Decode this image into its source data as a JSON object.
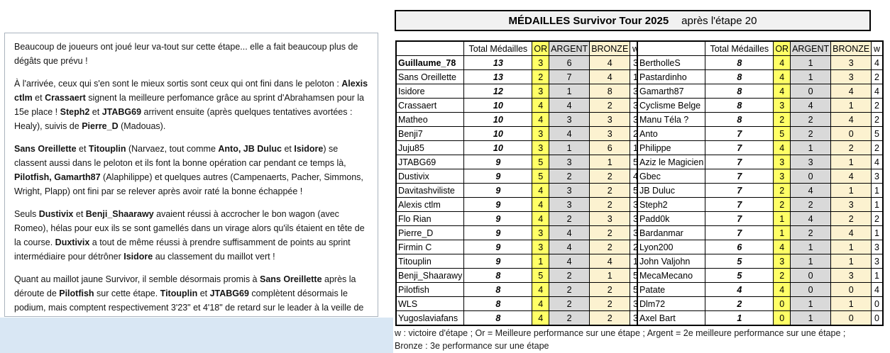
{
  "colors": {
    "or": "#ffff66",
    "argent": "#d9d9d9",
    "bronze": "#fcf2d0",
    "title_bg": "#f1f1f1",
    "blue_strip": "#d9e7f4"
  },
  "title": {
    "main": "MÉDAILLES Survivor Tour 2025",
    "suffix": "après l'étape 20"
  },
  "narrative": {
    "paragraphs": [
      [
        {
          "b": false,
          "t": "Beaucoup de joueurs ont joué leur va-tout sur cette étape... elle a fait beaucoup plus de dégâts que prévu !"
        }
      ],
      [
        {
          "b": false,
          "t": "À l'arrivée, ceux qui s'en sont le mieux sortis sont ceux qui ont fini dans le peloton : "
        },
        {
          "b": true,
          "t": "Alexis ctlm"
        },
        {
          "b": false,
          "t": " et "
        },
        {
          "b": true,
          "t": "Crassaert"
        },
        {
          "b": false,
          "t": " signent la meilleure perfomance grâce au sprint d'Abrahamsen pour la 15e place ! "
        },
        {
          "b": true,
          "t": "Steph2"
        },
        {
          "b": false,
          "t": " et "
        },
        {
          "b": true,
          "t": "JTABG69"
        },
        {
          "b": false,
          "t": " arrivent ensuite (après quelques tentatives avortées : Healy), suivis de "
        },
        {
          "b": true,
          "t": "Pierre_D"
        },
        {
          "b": false,
          "t": " (Madouas)."
        }
      ],
      [
        {
          "b": true,
          "t": "Sans Oreillette"
        },
        {
          "b": false,
          "t": " et "
        },
        {
          "b": true,
          "t": "Titouplin"
        },
        {
          "b": false,
          "t": " (Narvaez, tout comme "
        },
        {
          "b": true,
          "t": "Anto, JB Duluc"
        },
        {
          "b": false,
          "t": " et "
        },
        {
          "b": true,
          "t": "Isidore"
        },
        {
          "b": false,
          "t": ") se classent aussi dans le peloton et ils font la bonne opération car pendant ce temps là, "
        },
        {
          "b": true,
          "t": "Pilotfish, Gamarth87"
        },
        {
          "b": false,
          "t": " (Alaphilippe) et quelques autres (Campenaerts, Pacher, Simmons, Wright, Plapp) ont fini par se relever après avoir raté la bonne échappée !"
        }
      ],
      [
        {
          "b": false,
          "t": "Seuls "
        },
        {
          "b": true,
          "t": "Dustivix"
        },
        {
          "b": false,
          "t": " et "
        },
        {
          "b": true,
          "t": "Benji_Shaarawy"
        },
        {
          "b": false,
          "t": " avaient réussi à accrocher le bon wagon (avec Romeo), hélas pour eux ils se sont gamellés dans un virage alors qu'ils étaient en tête de la course. "
        },
        {
          "b": true,
          "t": "Duxtivix"
        },
        {
          "b": false,
          "t": " a tout de même réussi à prendre suffisamment de points au sprint intermédiaire pour détrôner "
        },
        {
          "b": true,
          "t": "Isidore"
        },
        {
          "b": false,
          "t": " au classement du maillot vert !"
        }
      ],
      [
        {
          "b": false,
          "t": "Quant au maillot jaune Survivor, il semble désormais promis à "
        },
        {
          "b": true,
          "t": "Sans Oreillette"
        },
        {
          "b": false,
          "t": " après la déroute de "
        },
        {
          "b": true,
          "t": "Pilotfish"
        },
        {
          "b": false,
          "t": " sur cette étape. "
        },
        {
          "b": true,
          "t": "Titouplin"
        },
        {
          "b": false,
          "t": " et "
        },
        {
          "b": true,
          "t": "JTABG69"
        },
        {
          "b": false,
          "t": " complètent désormais le podium, mais comptent respectivement 3'23\" et 4'18\" de retard sur le leader à la veille de l'arrivée."
        }
      ]
    ]
  },
  "tables": {
    "headers": {
      "name": "",
      "total": "Total Médailles",
      "or": "OR",
      "argent": "ARGENT",
      "bronze": "BRONZE",
      "w": "w"
    },
    "left": {
      "rows": [
        {
          "name": "Guillaume_78",
          "bold": true,
          "total": 13,
          "or": 3,
          "argent": 6,
          "bronze": 4,
          "w": 3
        },
        {
          "name": "Sans Oreillette",
          "total": 13,
          "or": 2,
          "argent": 7,
          "bronze": 4,
          "w": 1
        },
        {
          "name": "Isidore",
          "total": 12,
          "or": 3,
          "argent": 1,
          "bronze": 8,
          "w": 3
        },
        {
          "name": "Crassaert",
          "total": 10,
          "or": 4,
          "argent": 4,
          "bronze": 2,
          "w": 3
        },
        {
          "name": "Matheo",
          "total": 10,
          "or": 4,
          "argent": 3,
          "bronze": 3,
          "w": 3
        },
        {
          "name": "Benji7",
          "total": 10,
          "or": 3,
          "argent": 4,
          "bronze": 3,
          "w": 2
        },
        {
          "name": "Juju85",
          "total": 10,
          "or": 3,
          "argent": 1,
          "bronze": 6,
          "w": 1
        },
        {
          "name": "JTABG69",
          "total": 9,
          "or": 5,
          "argent": 3,
          "bronze": 1,
          "w": 5
        },
        {
          "name": "Dustivix",
          "total": 9,
          "or": 5,
          "argent": 2,
          "bronze": 2,
          "w": 4
        },
        {
          "name": "Davitashviliste",
          "total": 9,
          "or": 4,
          "argent": 3,
          "bronze": 2,
          "w": 5
        },
        {
          "name": "Alexis ctlm",
          "total": 9,
          "or": 4,
          "argent": 3,
          "bronze": 2,
          "w": 3
        },
        {
          "name": "Flo Rian",
          "total": 9,
          "or": 4,
          "argent": 2,
          "bronze": 3,
          "w": 3
        },
        {
          "name": "Pierre_D",
          "total": 9,
          "or": 3,
          "argent": 4,
          "bronze": 2,
          "w": 3
        },
        {
          "name": "Firmin C",
          "total": 9,
          "or": 3,
          "argent": 4,
          "bronze": 2,
          "w": 2
        },
        {
          "name": "Titouplin",
          "total": 9,
          "or": 1,
          "argent": 4,
          "bronze": 4,
          "w": 1
        },
        {
          "name": "Benji_Shaarawy",
          "total": 8,
          "or": 5,
          "argent": 2,
          "bronze": 1,
          "w": 5
        },
        {
          "name": "Pilotfish",
          "total": 8,
          "or": 4,
          "argent": 2,
          "bronze": 2,
          "w": 5
        },
        {
          "name": "WLS",
          "total": 8,
          "or": 4,
          "argent": 2,
          "bronze": 2,
          "w": 3
        },
        {
          "name": "Yugoslaviafans",
          "total": 8,
          "or": 4,
          "argent": 2,
          "bronze": 2,
          "w": 3
        }
      ]
    },
    "right": {
      "rows": [
        {
          "name": "BertholleS",
          "total": 8,
          "or": 4,
          "argent": 1,
          "bronze": 3,
          "w": 4
        },
        {
          "name": "Pastardinho",
          "total": 8,
          "or": 4,
          "argent": 1,
          "bronze": 3,
          "w": 2
        },
        {
          "name": "Gamarth87",
          "total": 8,
          "or": 4,
          "argent": 0,
          "bronze": 4,
          "w": 4
        },
        {
          "name": "Cyclisme Belge",
          "total": 8,
          "or": 3,
          "argent": 4,
          "bronze": 1,
          "w": 2
        },
        {
          "name": "Manu Téla ?",
          "total": 8,
          "or": 2,
          "argent": 2,
          "bronze": 4,
          "w": 2
        },
        {
          "name": "Anto",
          "total": 7,
          "or": 5,
          "argent": 2,
          "bronze": 0,
          "w": 5
        },
        {
          "name": "Philippe",
          "total": 7,
          "or": 4,
          "argent": 1,
          "bronze": 2,
          "w": 2
        },
        {
          "name": "Aziz le Magicien",
          "total": 7,
          "or": 3,
          "argent": 3,
          "bronze": 1,
          "w": 4
        },
        {
          "name": "Gbec",
          "total": 7,
          "or": 3,
          "argent": 0,
          "bronze": 4,
          "w": 3
        },
        {
          "name": "JB Duluc",
          "total": 7,
          "or": 2,
          "argent": 4,
          "bronze": 1,
          "w": 1
        },
        {
          "name": "Steph2",
          "total": 7,
          "or": 2,
          "argent": 2,
          "bronze": 3,
          "w": 1
        },
        {
          "name": "Padd0k",
          "total": 7,
          "or": 1,
          "argent": 4,
          "bronze": 2,
          "w": 2
        },
        {
          "name": "Bardanmar",
          "total": 7,
          "or": 1,
          "argent": 2,
          "bronze": 4,
          "w": 1
        },
        {
          "name": "Lyon200",
          "total": 6,
          "or": 4,
          "argent": 1,
          "bronze": 1,
          "w": 3
        },
        {
          "name": "John Valjohn",
          "total": 5,
          "or": 3,
          "argent": 1,
          "bronze": 1,
          "w": 3
        },
        {
          "name": "MecaMecano",
          "total": 5,
          "or": 2,
          "argent": 0,
          "bronze": 3,
          "w": 1
        },
        {
          "name": "Patate",
          "total": 4,
          "or": 4,
          "argent": 0,
          "bronze": 0,
          "w": 4
        },
        {
          "name": "Dlm72",
          "total": 2,
          "or": 0,
          "argent": 1,
          "bronze": 1,
          "w": 0
        },
        {
          "name": "Axel Bart",
          "total": 1,
          "or": 0,
          "argent": 1,
          "bronze": 0,
          "w": 0
        }
      ]
    }
  },
  "footnote": {
    "line1": "w : victoire d'étape ; Or = Meilleure performance sur une étape ; Argent = 2e meilleure performance sur une étape ;",
    "line2": "Bronze : 3e performance sur une étape"
  }
}
